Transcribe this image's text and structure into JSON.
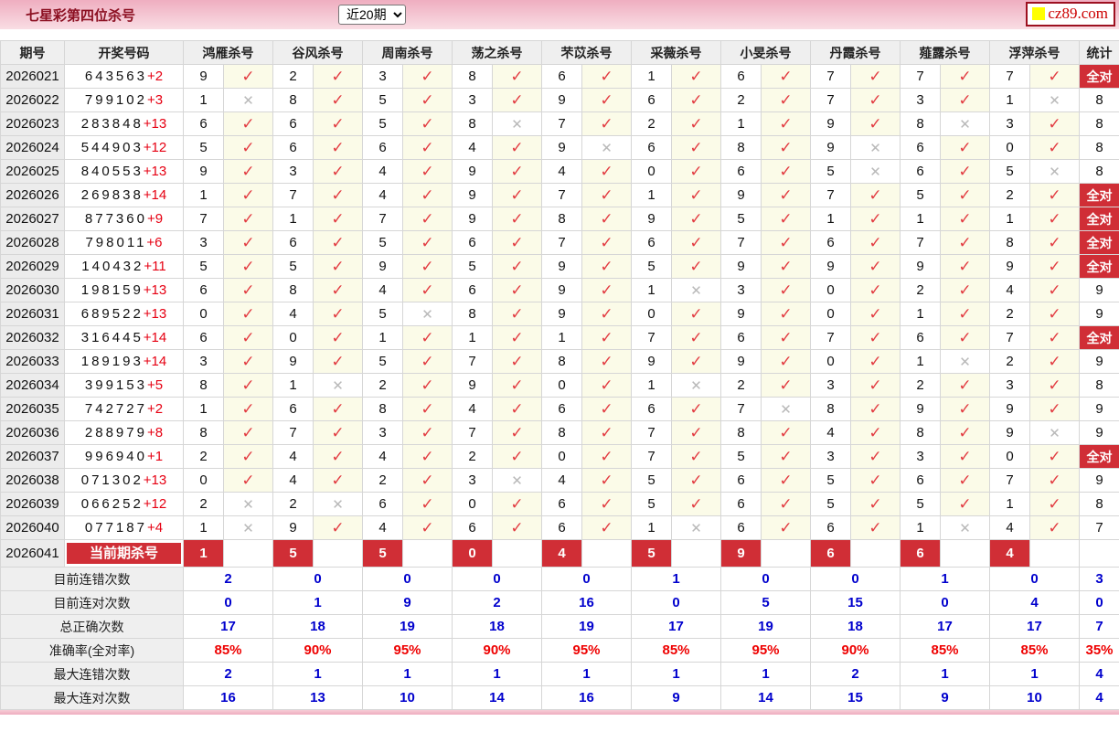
{
  "header": {
    "title": "七星彩第四位杀号",
    "range_select": {
      "value": "近20期"
    },
    "logo": {
      "text": "cz89.com"
    }
  },
  "colors": {
    "accent_red": "#d02e36",
    "check_red": "#e23b41",
    "cross_gray": "#b9b9b9",
    "value_blue": "#0000cd",
    "percent_red": "#ee0000",
    "topbar_pink": "#efaec0",
    "mark_cell_yellow": "#fbfbe8"
  },
  "table": {
    "columns": {
      "period": "期号",
      "numbers": "开奖号码",
      "experts": [
        "鸿雁杀号",
        "谷风杀号",
        "周南杀号",
        "荡之杀号",
        "芣苡杀号",
        "采薇杀号",
        "小旻杀号",
        "丹霞杀号",
        "薤露杀号",
        "浮萍杀号"
      ],
      "stat": "统计"
    },
    "marks": {
      "ok": "✓",
      "bad": "✕"
    },
    "all_hit_label": "全对",
    "rows": [
      {
        "period": "2026021",
        "num": "643563",
        "bonus": "+2",
        "cells": [
          [
            "9",
            1
          ],
          [
            "2",
            1
          ],
          [
            "3",
            1
          ],
          [
            "8",
            1
          ],
          [
            "6",
            1
          ],
          [
            "1",
            1
          ],
          [
            "6",
            1
          ],
          [
            "7",
            1
          ],
          [
            "7",
            1
          ],
          [
            "7",
            1
          ]
        ],
        "stat": "全对"
      },
      {
        "period": "2026022",
        "num": "799102",
        "bonus": "+3",
        "cells": [
          [
            "1",
            0
          ],
          [
            "8",
            1
          ],
          [
            "5",
            1
          ],
          [
            "3",
            1
          ],
          [
            "9",
            1
          ],
          [
            "6",
            1
          ],
          [
            "2",
            1
          ],
          [
            "7",
            1
          ],
          [
            "3",
            1
          ],
          [
            "1",
            0
          ]
        ],
        "stat": "8"
      },
      {
        "period": "2026023",
        "num": "283848",
        "bonus": "+13",
        "cells": [
          [
            "6",
            1
          ],
          [
            "6",
            1
          ],
          [
            "5",
            1
          ],
          [
            "8",
            0
          ],
          [
            "7",
            1
          ],
          [
            "2",
            1
          ],
          [
            "1",
            1
          ],
          [
            "9",
            1
          ],
          [
            "8",
            0
          ],
          [
            "3",
            1
          ]
        ],
        "stat": "8"
      },
      {
        "period": "2026024",
        "num": "544903",
        "bonus": "+12",
        "cells": [
          [
            "5",
            1
          ],
          [
            "6",
            1
          ],
          [
            "6",
            1
          ],
          [
            "4",
            1
          ],
          [
            "9",
            0
          ],
          [
            "6",
            1
          ],
          [
            "8",
            1
          ],
          [
            "9",
            0
          ],
          [
            "6",
            1
          ],
          [
            "0",
            1
          ]
        ],
        "stat": "8"
      },
      {
        "period": "2026025",
        "num": "840553",
        "bonus": "+13",
        "cells": [
          [
            "9",
            1
          ],
          [
            "3",
            1
          ],
          [
            "4",
            1
          ],
          [
            "9",
            1
          ],
          [
            "4",
            1
          ],
          [
            "0",
            1
          ],
          [
            "6",
            1
          ],
          [
            "5",
            0
          ],
          [
            "6",
            1
          ],
          [
            "5",
            0
          ]
        ],
        "stat": "8"
      },
      {
        "period": "2026026",
        "num": "269838",
        "bonus": "+14",
        "cells": [
          [
            "1",
            1
          ],
          [
            "7",
            1
          ],
          [
            "4",
            1
          ],
          [
            "9",
            1
          ],
          [
            "7",
            1
          ],
          [
            "1",
            1
          ],
          [
            "9",
            1
          ],
          [
            "7",
            1
          ],
          [
            "5",
            1
          ],
          [
            "2",
            1
          ]
        ],
        "stat": "全对"
      },
      {
        "period": "2026027",
        "num": "877360",
        "bonus": "+9",
        "cells": [
          [
            "7",
            1
          ],
          [
            "1",
            1
          ],
          [
            "7",
            1
          ],
          [
            "9",
            1
          ],
          [
            "8",
            1
          ],
          [
            "9",
            1
          ],
          [
            "5",
            1
          ],
          [
            "1",
            1
          ],
          [
            "1",
            1
          ],
          [
            "1",
            1
          ]
        ],
        "stat": "全对"
      },
      {
        "period": "2026028",
        "num": "798011",
        "bonus": "+6",
        "cells": [
          [
            "3",
            1
          ],
          [
            "6",
            1
          ],
          [
            "5",
            1
          ],
          [
            "6",
            1
          ],
          [
            "7",
            1
          ],
          [
            "6",
            1
          ],
          [
            "7",
            1
          ],
          [
            "6",
            1
          ],
          [
            "7",
            1
          ],
          [
            "8",
            1
          ]
        ],
        "stat": "全对"
      },
      {
        "period": "2026029",
        "num": "140432",
        "bonus": "+11",
        "cells": [
          [
            "5",
            1
          ],
          [
            "5",
            1
          ],
          [
            "9",
            1
          ],
          [
            "5",
            1
          ],
          [
            "9",
            1
          ],
          [
            "5",
            1
          ],
          [
            "9",
            1
          ],
          [
            "9",
            1
          ],
          [
            "9",
            1
          ],
          [
            "9",
            1
          ]
        ],
        "stat": "全对"
      },
      {
        "period": "2026030",
        "num": "198159",
        "bonus": "+13",
        "cells": [
          [
            "6",
            1
          ],
          [
            "8",
            1
          ],
          [
            "4",
            1
          ],
          [
            "6",
            1
          ],
          [
            "9",
            1
          ],
          [
            "1",
            0
          ],
          [
            "3",
            1
          ],
          [
            "0",
            1
          ],
          [
            "2",
            1
          ],
          [
            "4",
            1
          ]
        ],
        "stat": "9"
      },
      {
        "period": "2026031",
        "num": "689522",
        "bonus": "+13",
        "cells": [
          [
            "0",
            1
          ],
          [
            "4",
            1
          ],
          [
            "5",
            0
          ],
          [
            "8",
            1
          ],
          [
            "9",
            1
          ],
          [
            "0",
            1
          ],
          [
            "9",
            1
          ],
          [
            "0",
            1
          ],
          [
            "1",
            1
          ],
          [
            "2",
            1
          ]
        ],
        "stat": "9"
      },
      {
        "period": "2026032",
        "num": "316445",
        "bonus": "+14",
        "cells": [
          [
            "6",
            1
          ],
          [
            "0",
            1
          ],
          [
            "1",
            1
          ],
          [
            "1",
            1
          ],
          [
            "1",
            1
          ],
          [
            "7",
            1
          ],
          [
            "6",
            1
          ],
          [
            "7",
            1
          ],
          [
            "6",
            1
          ],
          [
            "7",
            1
          ]
        ],
        "stat": "全对"
      },
      {
        "period": "2026033",
        "num": "189193",
        "bonus": "+14",
        "cells": [
          [
            "3",
            1
          ],
          [
            "9",
            1
          ],
          [
            "5",
            1
          ],
          [
            "7",
            1
          ],
          [
            "8",
            1
          ],
          [
            "9",
            1
          ],
          [
            "9",
            1
          ],
          [
            "0",
            1
          ],
          [
            "1",
            0
          ],
          [
            "2",
            1
          ]
        ],
        "stat": "9"
      },
      {
        "period": "2026034",
        "num": "399153",
        "bonus": "+5",
        "cells": [
          [
            "8",
            1
          ],
          [
            "1",
            0
          ],
          [
            "2",
            1
          ],
          [
            "9",
            1
          ],
          [
            "0",
            1
          ],
          [
            "1",
            0
          ],
          [
            "2",
            1
          ],
          [
            "3",
            1
          ],
          [
            "2",
            1
          ],
          [
            "3",
            1
          ]
        ],
        "stat": "8"
      },
      {
        "period": "2026035",
        "num": "742727",
        "bonus": "+2",
        "cells": [
          [
            "1",
            1
          ],
          [
            "6",
            1
          ],
          [
            "8",
            1
          ],
          [
            "4",
            1
          ],
          [
            "6",
            1
          ],
          [
            "6",
            1
          ],
          [
            "7",
            0
          ],
          [
            "8",
            1
          ],
          [
            "9",
            1
          ],
          [
            "9",
            1
          ]
        ],
        "stat": "9"
      },
      {
        "period": "2026036",
        "num": "288979",
        "bonus": "+8",
        "cells": [
          [
            "8",
            1
          ],
          [
            "7",
            1
          ],
          [
            "3",
            1
          ],
          [
            "7",
            1
          ],
          [
            "8",
            1
          ],
          [
            "7",
            1
          ],
          [
            "8",
            1
          ],
          [
            "4",
            1
          ],
          [
            "8",
            1
          ],
          [
            "9",
            0
          ]
        ],
        "stat": "9"
      },
      {
        "period": "2026037",
        "num": "996940",
        "bonus": "+1",
        "cells": [
          [
            "2",
            1
          ],
          [
            "4",
            1
          ],
          [
            "4",
            1
          ],
          [
            "2",
            1
          ],
          [
            "0",
            1
          ],
          [
            "7",
            1
          ],
          [
            "5",
            1
          ],
          [
            "3",
            1
          ],
          [
            "3",
            1
          ],
          [
            "0",
            1
          ]
        ],
        "stat": "全对"
      },
      {
        "period": "2026038",
        "num": "071302",
        "bonus": "+13",
        "cells": [
          [
            "0",
            1
          ],
          [
            "4",
            1
          ],
          [
            "2",
            1
          ],
          [
            "3",
            0
          ],
          [
            "4",
            1
          ],
          [
            "5",
            1
          ],
          [
            "6",
            1
          ],
          [
            "5",
            1
          ],
          [
            "6",
            1
          ],
          [
            "7",
            1
          ]
        ],
        "stat": "9"
      },
      {
        "period": "2026039",
        "num": "066252",
        "bonus": "+12",
        "cells": [
          [
            "2",
            0
          ],
          [
            "2",
            0
          ],
          [
            "6",
            1
          ],
          [
            "0",
            1
          ],
          [
            "6",
            1
          ],
          [
            "5",
            1
          ],
          [
            "6",
            1
          ],
          [
            "5",
            1
          ],
          [
            "5",
            1
          ],
          [
            "1",
            1
          ]
        ],
        "stat": "8"
      },
      {
        "period": "2026040",
        "num": "077187",
        "bonus": "+4",
        "cells": [
          [
            "1",
            0
          ],
          [
            "9",
            1
          ],
          [
            "4",
            1
          ],
          [
            "6",
            1
          ],
          [
            "6",
            1
          ],
          [
            "1",
            0
          ],
          [
            "6",
            1
          ],
          [
            "6",
            1
          ],
          [
            "1",
            0
          ],
          [
            "4",
            1
          ]
        ],
        "stat": "7"
      }
    ],
    "current": {
      "period": "2026041",
      "label": "当前期杀号",
      "kills": [
        "1",
        "5",
        "5",
        "0",
        "4",
        "5",
        "9",
        "6",
        "6",
        "4"
      ]
    },
    "stats": [
      {
        "label": "目前连错次数",
        "values": [
          "2",
          "0",
          "0",
          "0",
          "0",
          "1",
          "0",
          "0",
          "1",
          "0"
        ],
        "total": "3",
        "style": "blue"
      },
      {
        "label": "目前连对次数",
        "values": [
          "0",
          "1",
          "9",
          "2",
          "16",
          "0",
          "5",
          "15",
          "0",
          "4"
        ],
        "total": "0",
        "style": "blue"
      },
      {
        "label": "总正确次数",
        "values": [
          "17",
          "18",
          "19",
          "18",
          "19",
          "17",
          "19",
          "18",
          "17",
          "17"
        ],
        "total": "7",
        "style": "blue"
      },
      {
        "label": "准确率(全对率)",
        "values": [
          "85%",
          "90%",
          "95%",
          "90%",
          "95%",
          "85%",
          "95%",
          "90%",
          "85%",
          "85%"
        ],
        "total": "35%",
        "style": "red"
      },
      {
        "label": "最大连错次数",
        "values": [
          "2",
          "1",
          "1",
          "1",
          "1",
          "1",
          "1",
          "2",
          "1",
          "1"
        ],
        "total": "4",
        "style": "blue"
      },
      {
        "label": "最大连对次数",
        "values": [
          "16",
          "13",
          "10",
          "14",
          "16",
          "9",
          "14",
          "15",
          "9",
          "10"
        ],
        "total": "4",
        "style": "blue"
      }
    ]
  }
}
